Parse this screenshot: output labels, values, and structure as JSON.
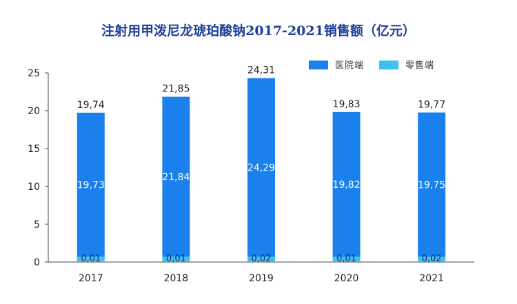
{
  "chart_data": {
    "type": "bar",
    "stacked": true,
    "title": "注射用甲泼尼龙琥珀酸钠2017-2021销售额（亿元）",
    "categories": [
      "2017",
      "2018",
      "2019",
      "2020",
      "2021"
    ],
    "series": [
      {
        "name": "医院端",
        "values": [
          19.73,
          21.84,
          24.29,
          19.82,
          19.75
        ],
        "labels": [
          "19,73",
          "21,84",
          "24,29",
          "19,82",
          "19,75"
        ],
        "color": "#1a80ee"
      },
      {
        "name": "零售端",
        "values": [
          0.01,
          0.01,
          0.02,
          0.01,
          0.02
        ],
        "labels": [
          "0,01",
          "0,01",
          "0,02",
          "0,01",
          "0,02"
        ],
        "color": "#3fc0f0"
      }
    ],
    "totals": [
      19.74,
      21.85,
      24.31,
      19.83,
      19.77
    ],
    "total_labels": [
      "19,74",
      "21,85",
      "24,31",
      "19,83",
      "19,77"
    ],
    "ylim": [
      0,
      25
    ],
    "yticks": [
      0,
      5,
      10,
      15,
      20,
      25
    ],
    "xlabel": "",
    "ylabel": "",
    "legend_position": "top-right",
    "grid": false
  }
}
